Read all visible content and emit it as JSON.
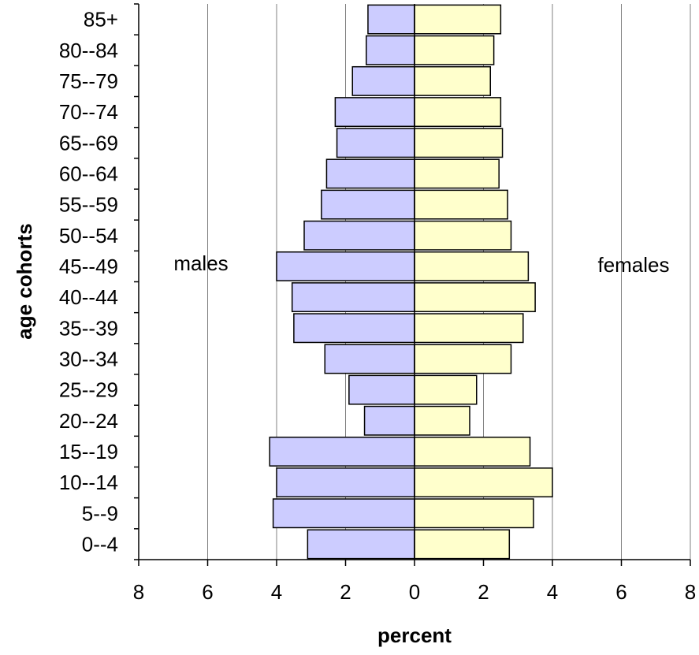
{
  "chart_data": {
    "type": "bar",
    "orientation": "horizontal",
    "layout": "population-pyramid",
    "categories": [
      "0--4",
      "5--9",
      "10--14",
      "15--19",
      "20--24",
      "25--29",
      "30--34",
      "35--39",
      "40--44",
      "45--49",
      "50--54",
      "55--59",
      "60--64",
      "65--69",
      "70--74",
      "75--79",
      "80--84",
      "85+"
    ],
    "series": [
      {
        "name": "males",
        "side": "left",
        "color": "#ccccff",
        "values": [
          3.1,
          4.1,
          4.0,
          4.2,
          1.45,
          1.9,
          2.6,
          3.5,
          3.55,
          4.0,
          3.2,
          2.7,
          2.55,
          2.25,
          2.3,
          1.8,
          1.4,
          1.35
        ]
      },
      {
        "name": "females",
        "side": "right",
        "color": "#ffffcc",
        "values": [
          2.75,
          3.45,
          4.0,
          3.35,
          1.6,
          1.8,
          2.8,
          3.15,
          3.5,
          3.3,
          2.8,
          2.7,
          2.45,
          2.55,
          2.5,
          2.2,
          2.3,
          2.5
        ]
      }
    ],
    "xlabel": "percent",
    "ylabel": "age cohorts",
    "xlim": [
      -8,
      8
    ],
    "xticks": [
      -8,
      -6,
      -4,
      -2,
      0,
      2,
      4,
      6,
      8
    ],
    "xtick_labels": [
      "8",
      "6",
      "4",
      "2",
      "0",
      "2",
      "4",
      "6",
      "8"
    ],
    "grid": "vertical",
    "annotations": [
      {
        "text": "males",
        "side": "left"
      },
      {
        "text": "females",
        "side": "right"
      }
    ],
    "bar_border_color": "#000000",
    "gridline_color": "#808080"
  }
}
